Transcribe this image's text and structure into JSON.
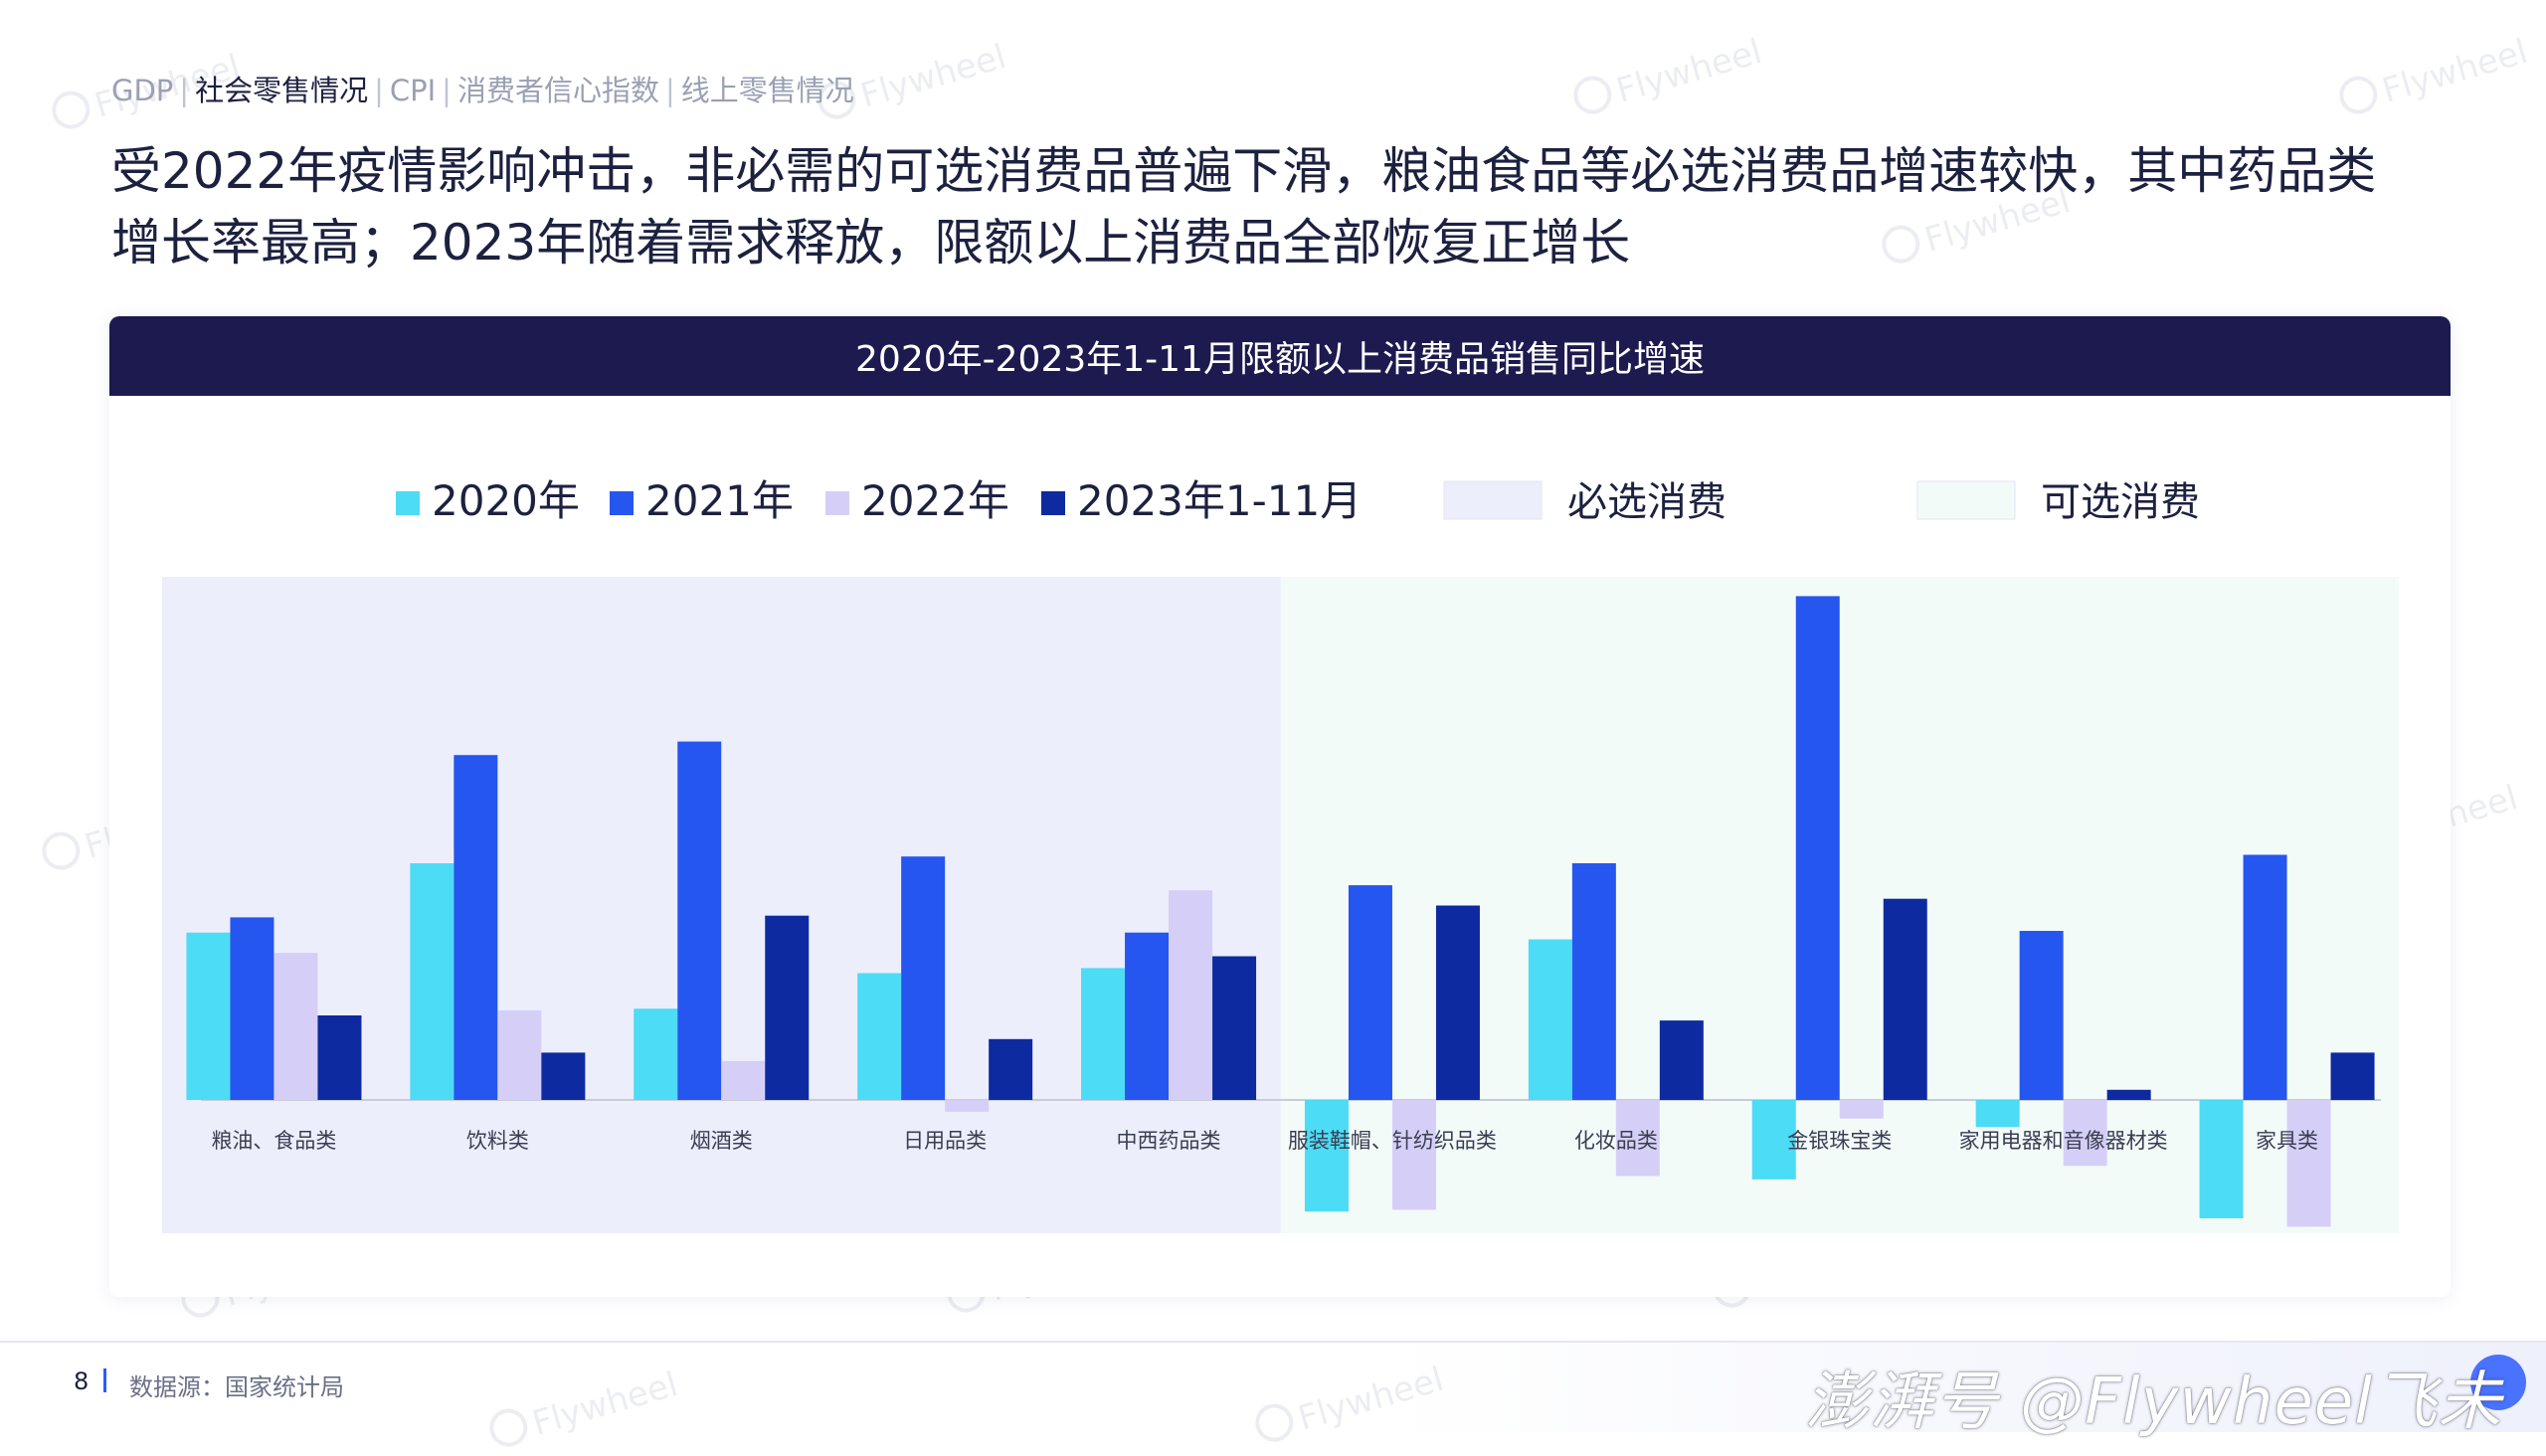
{
  "breadcrumb": {
    "items": [
      {
        "label": "GDP",
        "active": false
      },
      {
        "label": "社会零售情况",
        "active": true
      },
      {
        "label": "CPI",
        "active": false
      },
      {
        "label": "消费者信心指数",
        "active": false
      },
      {
        "label": "线上零售情况",
        "active": false
      }
    ],
    "separator": "|"
  },
  "headline": {
    "line1": "受2022年疫情影响冲击，非必需的可选消费品普遍下滑，粮油食品等必选消费品增速较快，其中药品类",
    "line2": "增长率最高；2023年随着需求释放，限额以上消费品全部恢复正增长"
  },
  "footer": {
    "page_number": "8",
    "source": "数据源：国家统计局",
    "brand": "澎湃号 @Flywheel飞未"
  },
  "watermark": "Flywheel",
  "colors": {
    "s2020": "#4cdcf5",
    "s2021": "#2656f0",
    "s2022": "#d5cff7",
    "s2023": "#0d2aa0",
    "essential_bg": "#eceefc",
    "optional_bg": "#f3fbf9",
    "header_bg": "#1c1a4e"
  },
  "chart_data": {
    "type": "bar",
    "title": "2020年-2023年1-11月限额以上消费品销售同比增速",
    "legend_position": "top",
    "categories": [
      "粮油、食品类",
      "饮料类",
      "烟酒类",
      "日用品类",
      "中西药品类",
      "服装鞋帽、针纺织品类",
      "化妆品类",
      "金银珠宝类",
      "家用电器和音像器材类",
      "家具类"
    ],
    "series": [
      {
        "name": "2020年",
        "color_key": "s2020",
        "values": [
          9.9,
          14.0,
          5.4,
          7.5,
          7.8,
          -6.6,
          9.5,
          -4.7,
          -1.6,
          -7.0
        ]
      },
      {
        "name": "2021年",
        "color_key": "s2021",
        "values": [
          10.8,
          20.4,
          21.2,
          14.4,
          9.9,
          12.7,
          14.0,
          29.8,
          10.0,
          14.5
        ]
      },
      {
        "name": "2022年",
        "color_key": "s2022",
        "values": [
          8.7,
          5.3,
          2.3,
          -0.7,
          12.4,
          -6.5,
          -4.5,
          -1.1,
          -3.9,
          -7.5
        ]
      },
      {
        "name": "2023年1-11月",
        "color_key": "s2023",
        "values": [
          5.0,
          2.8,
          10.9,
          3.6,
          8.5,
          11.5,
          4.7,
          11.9,
          0.6,
          2.8
        ]
      }
    ],
    "groups": [
      {
        "name": "必选消费",
        "color_key": "essential_bg",
        "from": 0,
        "to": 4
      },
      {
        "name": "可选消费",
        "color_key": "optional_bg",
        "from": 5,
        "to": 9
      }
    ],
    "ylim": [
      -8,
      30
    ],
    "grid": false,
    "xlabel": "",
    "ylabel": ""
  }
}
